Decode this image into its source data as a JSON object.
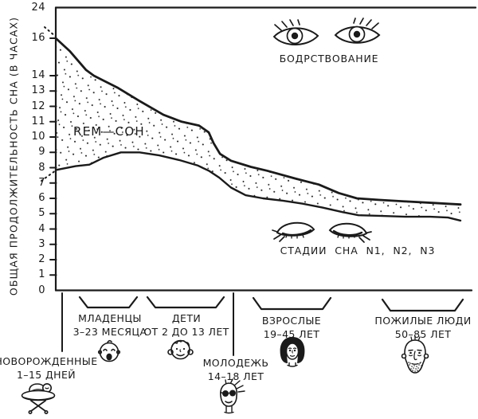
{
  "page": {
    "background": "#ffffff",
    "ink": "#1a1a1a"
  },
  "y_axis": {
    "title": "ОБЩАЯ ПРОДОЛЖИТЕЛЬНОСТЬ СНА (В ЧАСАХ)"
  },
  "annotations": {
    "wakefulness": "БОДРСТВОВАНИЕ",
    "rem_sleep": "REM—СОН",
    "sleep_stages": "СТАДИИ СНА N1, N2, N3"
  },
  "age_groups": [
    {
      "line1": "НОВОРОЖДЕННЫЕ",
      "line2": "1–15 ДНЕЙ",
      "icon": "bassinet-baby-icon"
    },
    {
      "line1": "МЛАДЕНЦЫ",
      "line2": "3–23 МЕСЯЦА",
      "icon": "baby-face-icon"
    },
    {
      "line1": "ДЕТИ",
      "line2": "ОТ 2 ДО 13 ЛЕТ",
      "icon": "girl-face-icon"
    },
    {
      "line1": "МОЛОДЕЖЬ",
      "line2": "14–18 ЛЕТ",
      "icon": "teen-sunglasses-face-icon"
    },
    {
      "line1": "ВЗРОСЛЫЕ",
      "line2": "19–45 ЛЕТ",
      "icon": "woman-face-icon"
    },
    {
      "line1": "ПОЖИЛЫЕ ЛЮДИ",
      "line2": "50–85 ЛЕТ",
      "icon": "old-man-face-icon"
    }
  ],
  "chart_data": {
    "type": "area",
    "title": "",
    "ylabel": "ОБЩАЯ ПРОДОЛЖИТЕЛЬНОСТЬ СНА (В ЧАСАХ)",
    "ylim": [
      0,
      24
    ],
    "y_ticks": [
      24,
      16,
      14,
      13,
      12,
      11,
      10,
      9,
      8,
      7,
      6,
      5,
      4,
      3,
      2,
      1,
      0
    ],
    "categories": [
      "НОВОРОЖДЕННЫЕ 1–15 ДНЕЙ",
      "МЛАДЕНЦЫ 3–23 МЕСЯЦА",
      "ДЕТИ ОТ 2 ДО 13 ЛЕТ",
      "МОЛОДЕЖЬ 14–18 ЛЕТ",
      "ВЗРОСЛЫЕ 19–45 ЛЕТ",
      "ПОЖИЛЫЕ ЛЮДИ 50–85 ЛЕТ"
    ],
    "x_unit": "доля ширины оси (0–1), числовой шкалы возраста нет",
    "series": [
      {
        "name": "общая продолжительность сна (верхняя кривая)",
        "points": [
          [
            0,
            16
          ],
          [
            0.035,
            15.3
          ],
          [
            0.075,
            14.3
          ],
          [
            0.094,
            14.0
          ],
          [
            0.154,
            13.2
          ],
          [
            0.207,
            12.35
          ],
          [
            0.266,
            11.45
          ],
          [
            0.311,
            11.0
          ],
          [
            0.354,
            10.75
          ],
          [
            0.378,
            10.3
          ],
          [
            0.39,
            9.6
          ],
          [
            0.406,
            8.9
          ],
          [
            0.433,
            8.45
          ],
          [
            0.482,
            8.05
          ],
          [
            0.522,
            7.8
          ],
          [
            0.591,
            7.3
          ],
          [
            0.65,
            6.9
          ],
          [
            0.699,
            6.35
          ],
          [
            0.744,
            6.0
          ],
          [
            0.797,
            5.9
          ],
          [
            0.866,
            5.8
          ],
          [
            0.935,
            5.7
          ],
          [
            1,
            5.6
          ]
        ]
      },
      {
        "name": "нижняя граница REM-сна (начало стадий N1–N3)",
        "points": [
          [
            0,
            7.85
          ],
          [
            0.049,
            8.1
          ],
          [
            0.083,
            8.2
          ],
          [
            0.118,
            8.65
          ],
          [
            0.161,
            9.0
          ],
          [
            0.207,
            9.0
          ],
          [
            0.256,
            8.8
          ],
          [
            0.305,
            8.5
          ],
          [
            0.35,
            8.15
          ],
          [
            0.378,
            7.8
          ],
          [
            0.404,
            7.35
          ],
          [
            0.433,
            6.7
          ],
          [
            0.469,
            6.2
          ],
          [
            0.512,
            6.0
          ],
          [
            0.561,
            5.85
          ],
          [
            0.61,
            5.65
          ],
          [
            0.659,
            5.4
          ],
          [
            0.709,
            5.1
          ],
          [
            0.748,
            4.9
          ],
          [
            0.807,
            4.85
          ],
          [
            0.866,
            4.8
          ],
          [
            0.925,
            4.8
          ],
          [
            0.969,
            4.75
          ],
          [
            1,
            4.55
          ]
        ]
      }
    ],
    "regions": {
      "above_upper_curve": "БОДРСТВОВАНИЕ",
      "between_curves": "REM—СОН (пунктирная заливка)",
      "below_lower_curve": "СТАДИИ СНА N1, N2, N3"
    },
    "legend_position": "нет легенды, подписи внутри поля"
  }
}
